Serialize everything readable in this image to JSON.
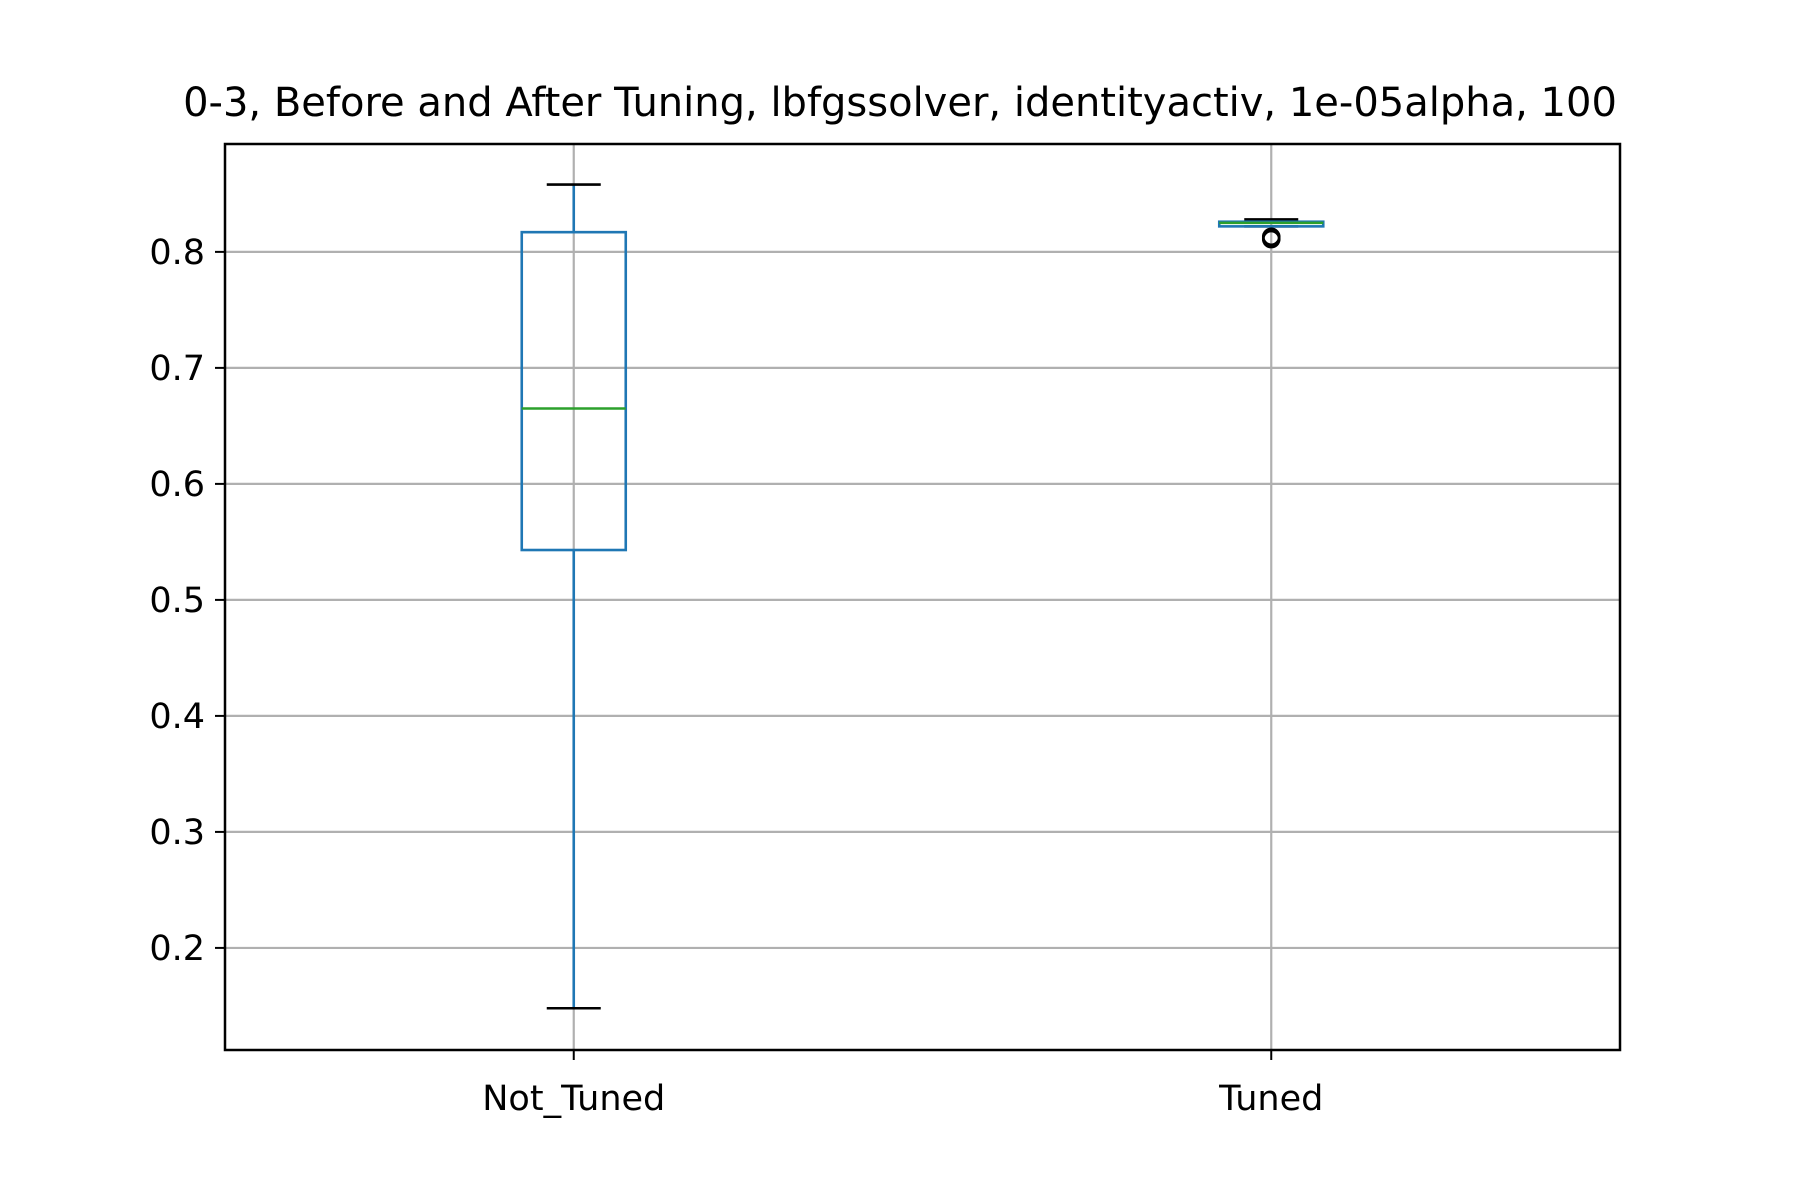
{
  "chart_data": {
    "type": "box",
    "title": "0-3, Before and After Tuning, lbfgssolver, identityactiv, 1e-05alpha, 100",
    "xlabel": "",
    "ylabel": "",
    "ylim": [
      0.112,
      0.893
    ],
    "yticks": [
      "0.2",
      "0.3",
      "0.4",
      "0.5",
      "0.6",
      "0.7",
      "0.8"
    ],
    "grid": true,
    "categories": [
      "Not_Tuned",
      "Tuned"
    ],
    "boxes": [
      {
        "name": "Not_Tuned",
        "whisker_low": 0.148,
        "q1": 0.543,
        "median": 0.665,
        "q3": 0.817,
        "whisker_high": 0.858,
        "outliers": []
      },
      {
        "name": "Tuned",
        "whisker_low": 0.822,
        "q1": 0.822,
        "median": 0.825,
        "q3": 0.826,
        "whisker_high": 0.828,
        "outliers": [
          0.813,
          0.812,
          0.811
        ]
      }
    ],
    "colors": {
      "box": "#1f77b4",
      "median": "#2ca02c",
      "whisker_cap": "#000000",
      "grid": "#b0b0b0",
      "outlier": "#000000"
    }
  }
}
